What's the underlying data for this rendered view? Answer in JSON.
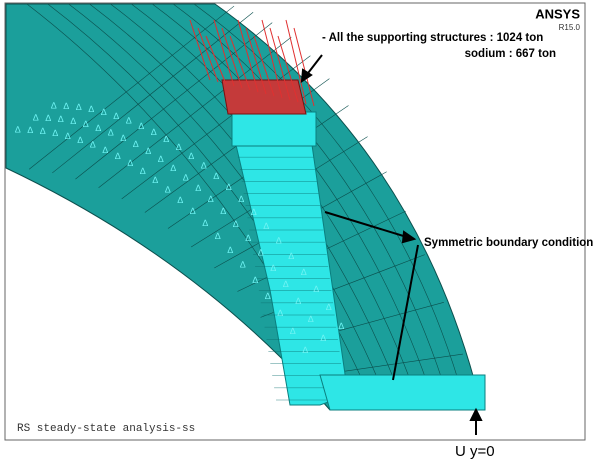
{
  "header": {
    "logo": "ANSYS",
    "version": "R15.0"
  },
  "annotations": {
    "supports": "- All the supporting structures : 1024 ton",
    "sodium": "sodium  :  667 ton",
    "symmetry": "Symmetric boundary condition",
    "constraint": "U y=0"
  },
  "footer": {
    "analysis": "RS steady-state analysis-ss"
  }
}
